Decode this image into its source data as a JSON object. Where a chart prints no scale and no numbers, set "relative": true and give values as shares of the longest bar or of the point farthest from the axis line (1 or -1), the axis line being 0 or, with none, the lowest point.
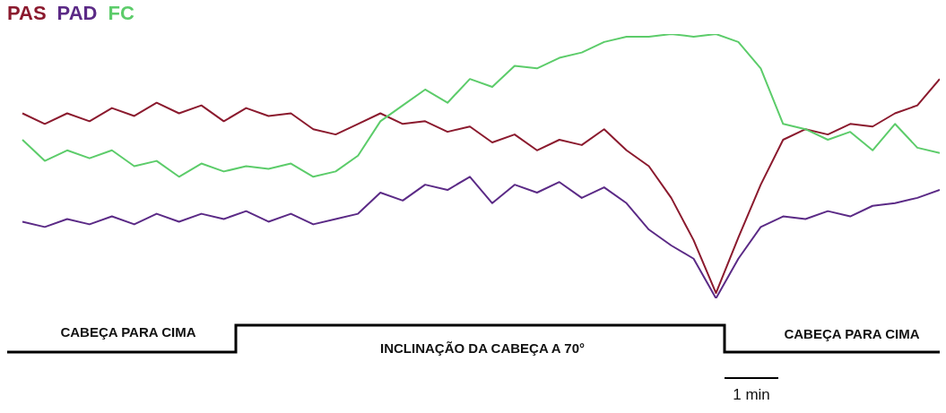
{
  "chart_data": {
    "type": "line",
    "relative": true,
    "legend": "top left",
    "grid": false,
    "marker": "none",
    "line_style": "solid",
    "categories": [
      null,
      null,
      null,
      null,
      null,
      null,
      null,
      null,
      null,
      null,
      null,
      null,
      null,
      null,
      null,
      null,
      null,
      null,
      null,
      null,
      null,
      null,
      null,
      null,
      null,
      null,
      null,
      null,
      null,
      null,
      null,
      null,
      null,
      null,
      null,
      null,
      null,
      null,
      null,
      null,
      null,
      null
    ],
    "series": [
      {
        "name": "PAS",
        "color": "#8b1a2e",
        "values": [
          0.7,
          0.66,
          0.7,
          0.67,
          0.72,
          0.69,
          0.74,
          0.7,
          0.73,
          0.67,
          0.72,
          0.69,
          0.7,
          0.64,
          0.62,
          0.66,
          0.7,
          0.66,
          0.67,
          0.63,
          0.65,
          0.59,
          0.62,
          0.56,
          0.6,
          0.58,
          0.64,
          0.56,
          0.5,
          0.38,
          0.22,
          0.02,
          0.23,
          0.43,
          0.6,
          0.64,
          0.62,
          0.66,
          0.65,
          0.7,
          0.73,
          0.83
        ]
      },
      {
        "name": "PAD",
        "color": "#5b2a86",
        "values": [
          0.29,
          0.27,
          0.3,
          0.28,
          0.31,
          0.28,
          0.32,
          0.29,
          0.32,
          0.3,
          0.33,
          0.29,
          0.32,
          0.28,
          0.3,
          0.32,
          0.4,
          0.37,
          0.43,
          0.41,
          0.46,
          0.36,
          0.43,
          0.4,
          0.44,
          0.38,
          0.42,
          0.36,
          0.26,
          0.2,
          0.15,
          0,
          0.15,
          0.27,
          0.31,
          0.3,
          0.33,
          0.31,
          0.35,
          0.36,
          0.38,
          0.41
        ]
      },
      {
        "name": "FC",
        "color": "#5ccc6a",
        "values": [
          0.6,
          0.52,
          0.56,
          0.53,
          0.56,
          0.5,
          0.52,
          0.46,
          0.51,
          0.48,
          0.5,
          0.49,
          0.51,
          0.46,
          0.48,
          0.54,
          0.67,
          0.73,
          0.79,
          0.74,
          0.83,
          0.8,
          0.88,
          0.87,
          0.91,
          0.93,
          0.97,
          0.99,
          0.99,
          1,
          0.99,
          1,
          0.97,
          0.87,
          0.66,
          0.64,
          0.6,
          0.63,
          0.56,
          0.66,
          0.57,
          0.55
        ]
      }
    ],
    "annotations": [
      "CABEÇA PARA CIMA",
      "INCLINAÇÃO DA CABEÇA A 70°",
      "CABEÇA PARA CIMA",
      "1 min"
    ]
  }
}
